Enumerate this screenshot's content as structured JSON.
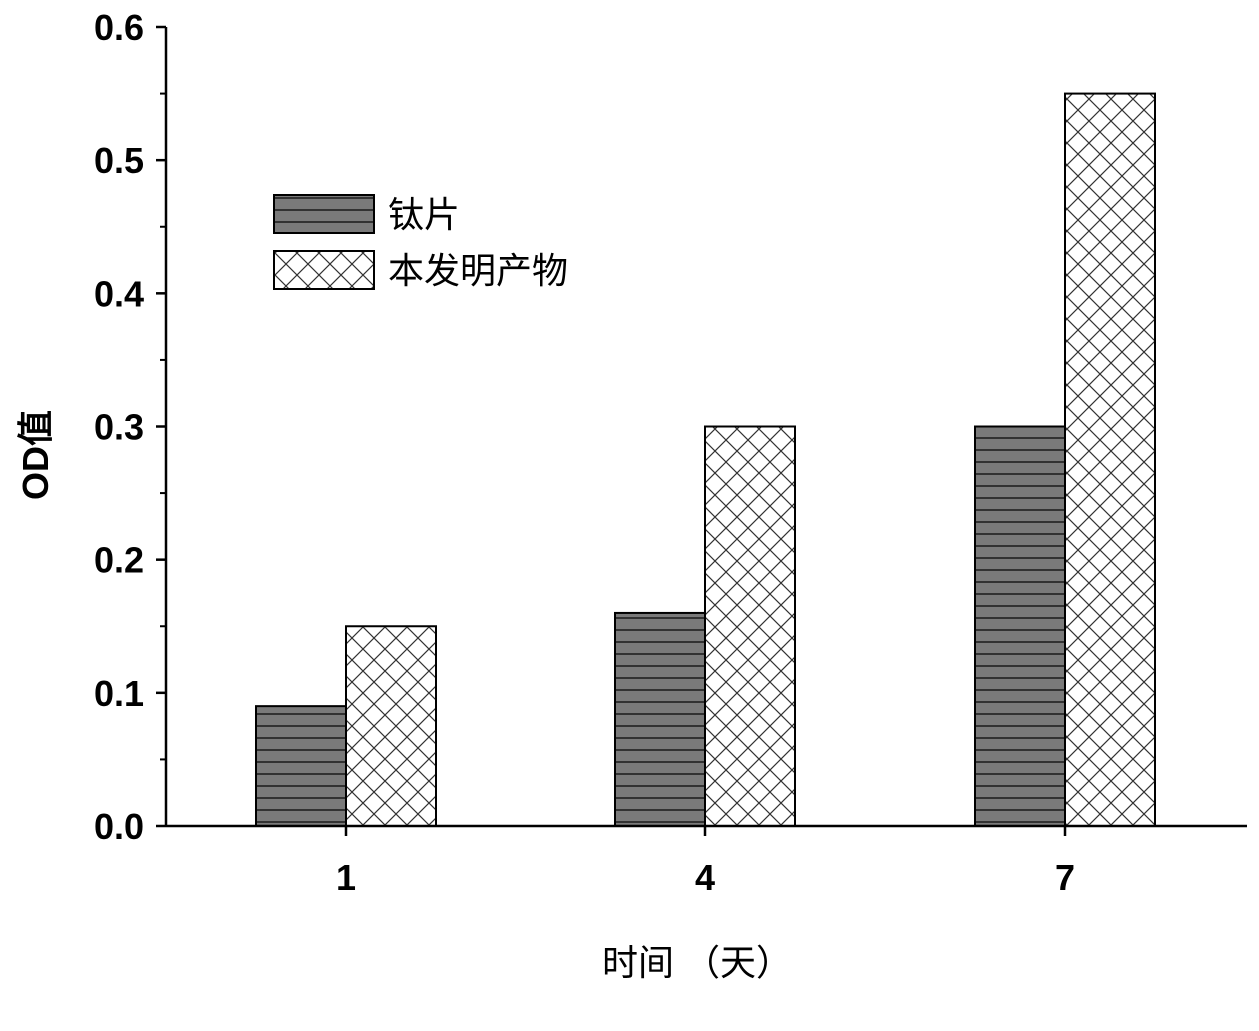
{
  "chart_data": {
    "type": "bar",
    "categories": [
      "1",
      "4",
      "7"
    ],
    "series": [
      {
        "name": "钛片",
        "values": [
          0.09,
          0.16,
          0.3
        ],
        "color": "#7a7a7a",
        "pattern": "horizontal-lines"
      },
      {
        "name": "本发明产物",
        "values": [
          0.15,
          0.3,
          0.55
        ],
        "color": "#ffffff",
        "pattern": "crosshatch"
      }
    ],
    "xlabel": "时间 （天）",
    "ylabel": "OD值",
    "ylim": [
      0,
      0.6
    ],
    "yticks": [
      "0.0",
      "0.1",
      "0.2",
      "0.3",
      "0.4",
      "0.5",
      "0.6"
    ],
    "grid": false,
    "legend_position": "top-left"
  }
}
